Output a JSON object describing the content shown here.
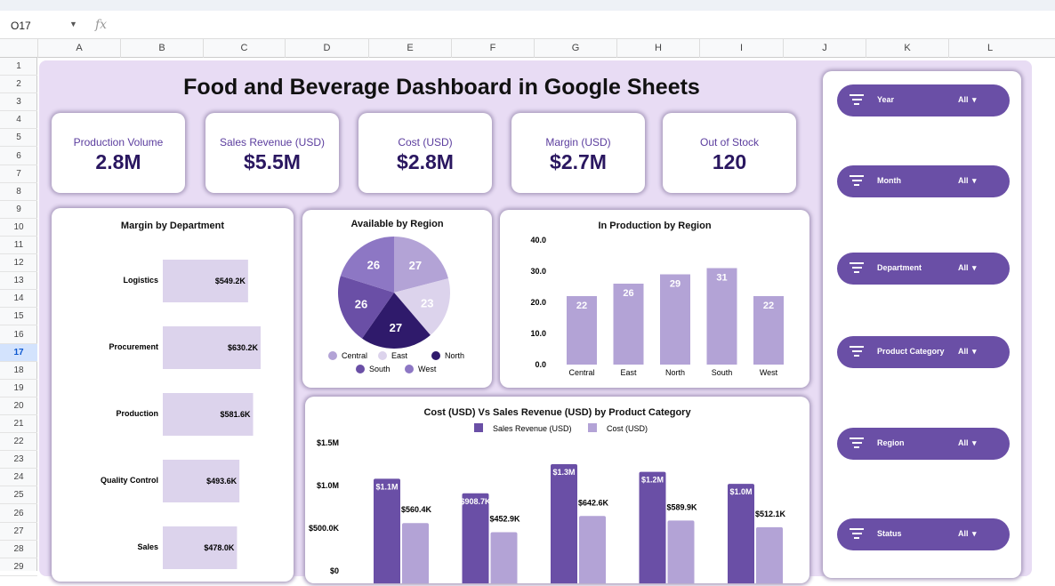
{
  "formula_bar": {
    "cell": "O17",
    "fx": "fx"
  },
  "columns": [
    "A",
    "B",
    "C",
    "D",
    "E",
    "F",
    "G",
    "H",
    "I",
    "J",
    "K",
    "L"
  ],
  "rows": [
    "1",
    "2",
    "3",
    "4",
    "5",
    "6",
    "7",
    "8",
    "9",
    "10",
    "11",
    "12",
    "13",
    "14",
    "15",
    "16",
    "17",
    "18",
    "19",
    "20",
    "21",
    "22",
    "23",
    "24",
    "25",
    "26",
    "27",
    "28",
    "29"
  ],
  "selected_row": "17",
  "dashboard": {
    "title": "Food and Beverage Dashboard in Google Sheets",
    "kpis": [
      {
        "label": "Production Volume",
        "value": "2.8M"
      },
      {
        "label": "Sales Revenue (USD)",
        "value": "$5.5M"
      },
      {
        "label": "Cost (USD)",
        "value": "$2.8M"
      },
      {
        "label": "Margin (USD)",
        "value": "$2.7M"
      },
      {
        "label": "Out of Stock",
        "value": "120"
      }
    ],
    "filters": [
      {
        "label": "Year",
        "value": "All"
      },
      {
        "label": "Month",
        "value": "All"
      },
      {
        "label": "Department",
        "value": "All"
      },
      {
        "label": "Product Category",
        "value": "All"
      },
      {
        "label": "Region",
        "value": "All"
      },
      {
        "label": "Status",
        "value": "All"
      }
    ]
  },
  "colors": {
    "accent": "#6a4fa6",
    "light": "#b3a3d6",
    "pale": "#dcd3ec",
    "dark": "#2f1a6b",
    "bg": "#e8dcf4"
  },
  "chart_data": [
    {
      "type": "bar",
      "orientation": "horizontal",
      "title": "Margin  by Department",
      "categories": [
        "Logistics",
        "Procurement",
        "Production",
        "Quality Control",
        "Sales"
      ],
      "values": [
        549.2,
        630.2,
        581.6,
        493.6,
        478.0
      ],
      "labels": [
        "$549.2K",
        "$630.2K",
        "$581.6K",
        "$493.6K",
        "$478.0K"
      ]
    },
    {
      "type": "pie",
      "title": "Available  by Region",
      "categories": [
        "Central",
        "East",
        "North",
        "South",
        "West"
      ],
      "values": [
        27,
        23,
        27,
        26,
        26
      ],
      "colors": [
        "#b3a3d6",
        "#dcd3ec",
        "#2f1a6b",
        "#6a4fa6",
        "#8d77c4"
      ],
      "legend": "bottom"
    },
    {
      "type": "bar",
      "title": "In Production by Region",
      "categories": [
        "Central",
        "East",
        "North",
        "South",
        "West"
      ],
      "values": [
        22,
        26,
        29,
        31,
        22
      ],
      "ylim": [
        0,
        40
      ],
      "yticks": [
        "0.0",
        "10.0",
        "20.0",
        "30.0",
        "40.0"
      ]
    },
    {
      "type": "bar",
      "title": "Cost (USD) Vs Sales Revenue (USD) by Product Category",
      "ylim": [
        0,
        1500000
      ],
      "yticks": [
        "$0",
        "$500.0K",
        "$1.0M",
        "$1.5M"
      ],
      "legend": "top",
      "series": [
        {
          "name": "Sales Revenue (USD)",
          "color": "#6a4fa6",
          "values": [
            1080000,
            908700,
            1250000,
            1160000,
            1020000
          ],
          "labels": [
            "$1.1M",
            "$908.7K",
            "$1.3M",
            "$1.2M",
            "$1.0M"
          ]
        },
        {
          "name": "Cost (USD)",
          "color": "#b3a3d6",
          "values": [
            560400,
            452900,
            642600,
            589900,
            512100
          ],
          "labels": [
            "$560.4K",
            "$452.9K",
            "$642.6K",
            "$589.9K",
            "$512.1K"
          ]
        }
      ]
    }
  ]
}
